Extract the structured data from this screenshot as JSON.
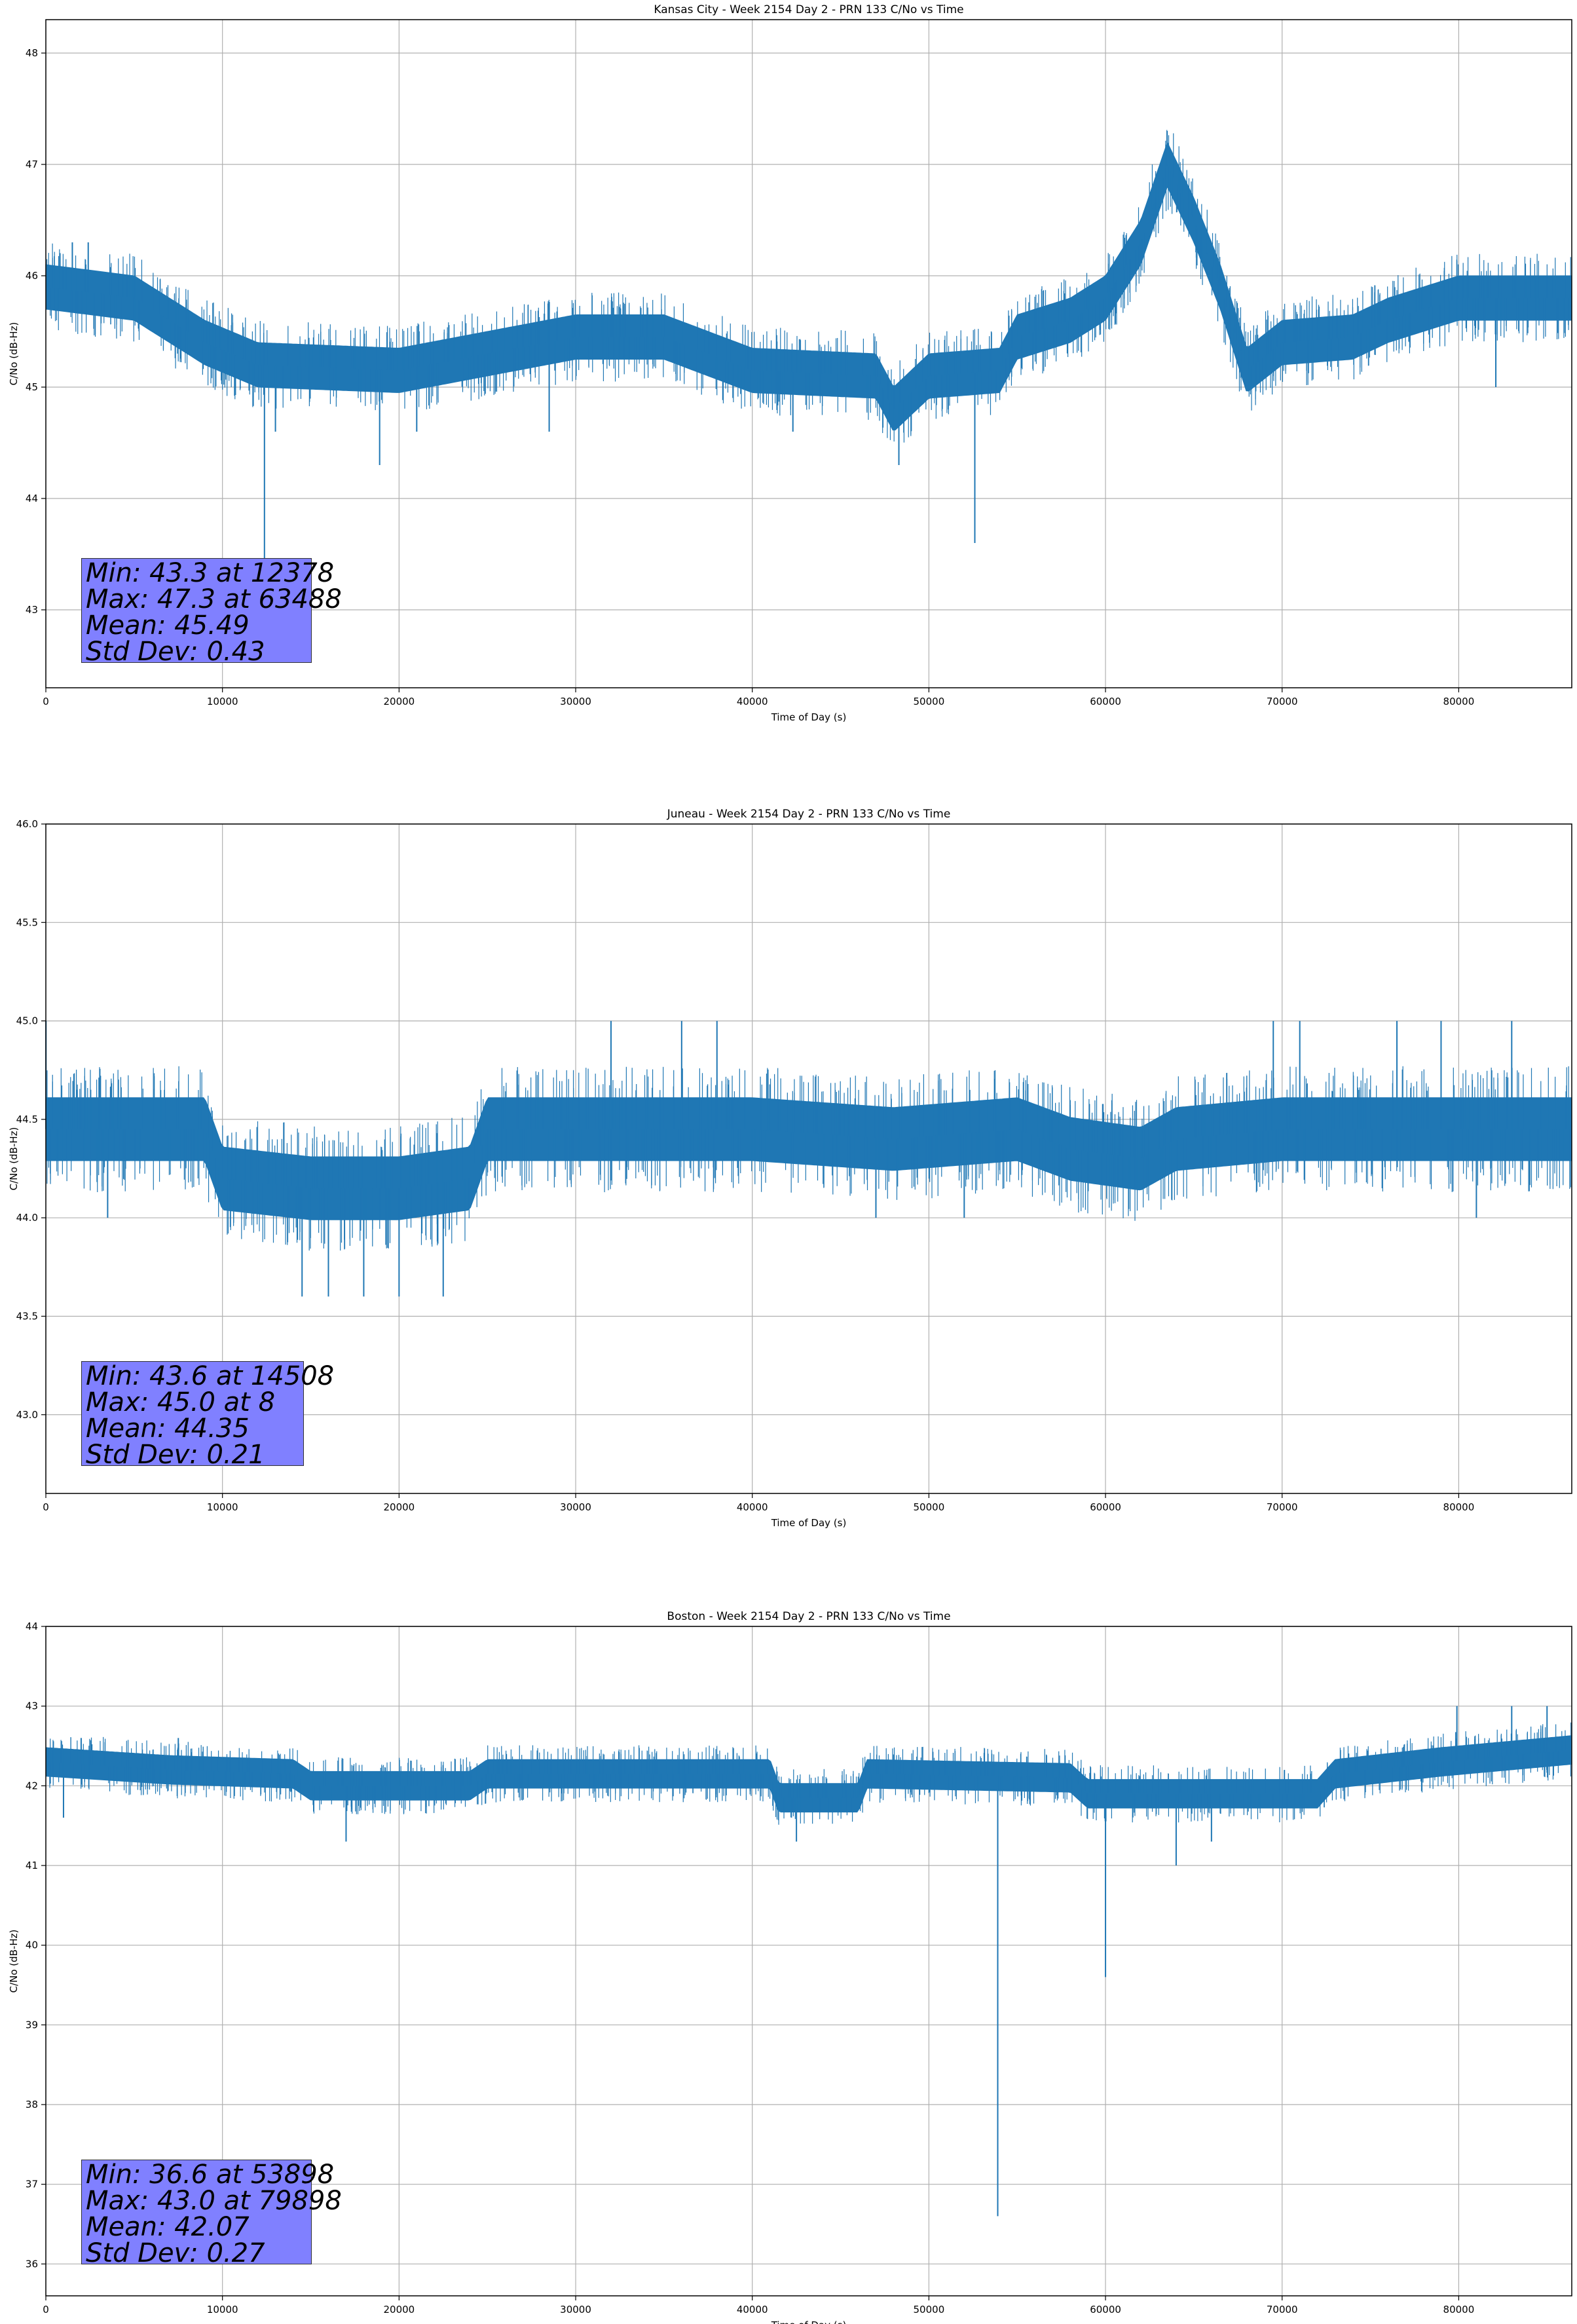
{
  "colors": {
    "series": "#1f77b4",
    "statsBox": "#8080ff",
    "grid": "#b0b0b0",
    "axis": "#000000"
  },
  "chart_data": [
    {
      "type": "line",
      "title": "Kansas City - Week 2154 Day 2 - PRN 133 C/No vs Time",
      "xlabel": "Time of Day (s)",
      "ylabel": "C/No (dB-Hz)",
      "xlim": [
        0,
        86400
      ],
      "ylim": [
        42.3,
        48.3
      ],
      "xticks": [
        0,
        10000,
        20000,
        30000,
        40000,
        50000,
        60000,
        70000,
        80000
      ],
      "yticks": [
        43,
        44,
        45,
        46,
        47,
        48
      ],
      "grid": true,
      "series": [
        {
          "points": [
            [
              0,
              45.9
            ],
            [
              5000,
              45.8
            ],
            [
              9000,
              45.4
            ],
            [
              12000,
              45.2
            ],
            [
              20000,
              45.15
            ],
            [
              25000,
              45.3
            ],
            [
              30000,
              45.45
            ],
            [
              35000,
              45.45
            ],
            [
              40000,
              45.15
            ],
            [
              47000,
              45.1
            ],
            [
              48000,
              44.8
            ],
            [
              50000,
              45.1
            ],
            [
              54000,
              45.15
            ],
            [
              55000,
              45.45
            ],
            [
              58000,
              45.6
            ],
            [
              60000,
              45.8
            ],
            [
              62000,
              46.3
            ],
            [
              63500,
              47.0
            ],
            [
              65000,
              46.5
            ],
            [
              66500,
              45.9
            ],
            [
              68000,
              45.15
            ],
            [
              70000,
              45.4
            ],
            [
              74000,
              45.45
            ],
            [
              76000,
              45.6
            ],
            [
              80000,
              45.8
            ],
            [
              86400,
              45.8
            ]
          ],
          "band_half_width": 0.2,
          "spikes": [
            [
              12378,
              43.3
            ],
            [
              52600,
              43.6
            ],
            [
              48300,
              44.3
            ],
            [
              18900,
              44.3
            ],
            [
              21000,
              44.6
            ],
            [
              28500,
              44.6
            ],
            [
              42300,
              44.6
            ],
            [
              82100,
              45.0
            ],
            [
              1500,
              46.3
            ],
            [
              13000,
              44.6
            ],
            [
              2400,
              46.3
            ],
            [
              63488,
              47.3
            ]
          ]
        }
      ],
      "stats": {
        "min": "Min: 43.3 at 12378",
        "max": "Max: 47.3 at 63488",
        "mean": "Mean: 45.49",
        "std": "Std Dev: 0.43"
      }
    },
    {
      "type": "line",
      "title": "Juneau - Week 2154 Day 2 - PRN 133 C/No vs Time",
      "xlabel": "Time of Day (s)",
      "ylabel": "C/No (dB-Hz)",
      "xlim": [
        0,
        86400
      ],
      "ylim": [
        42.6,
        46.0
      ],
      "xticks": [
        0,
        10000,
        20000,
        30000,
        40000,
        50000,
        60000,
        70000,
        80000
      ],
      "yticks": [
        43.0,
        43.5,
        44.0,
        44.5,
        45.0,
        45.5,
        46.0
      ],
      "grid": true,
      "series": [
        {
          "points": [
            [
              0,
              44.45
            ],
            [
              9000,
              44.45
            ],
            [
              10000,
              44.2
            ],
            [
              15000,
              44.15
            ],
            [
              20000,
              44.15
            ],
            [
              24000,
              44.2
            ],
            [
              25000,
              44.45
            ],
            [
              40000,
              44.45
            ],
            [
              48000,
              44.4
            ],
            [
              55000,
              44.45
            ],
            [
              58000,
              44.35
            ],
            [
              62000,
              44.3
            ],
            [
              64000,
              44.4
            ],
            [
              70000,
              44.45
            ],
            [
              86400,
              44.45
            ]
          ],
          "band_half_width": 0.16,
          "spikes": [
            [
              14508,
              43.6
            ],
            [
              16000,
              43.6
            ],
            [
              18000,
              43.6
            ],
            [
              20000,
              43.6
            ],
            [
              22500,
              43.6
            ],
            [
              8,
              45.0
            ],
            [
              32000,
              45.0
            ],
            [
              36000,
              45.0
            ],
            [
              38000,
              45.0
            ],
            [
              71000,
              45.0
            ],
            [
              79000,
              45.0
            ],
            [
              83000,
              45.0
            ],
            [
              3500,
              44.0
            ],
            [
              47000,
              44.0
            ],
            [
              52000,
              44.0
            ],
            [
              81000,
              44.0
            ],
            [
              69500,
              45.0
            ],
            [
              76500,
              45.0
            ]
          ]
        }
      ],
      "stats": {
        "min": "Min: 43.6 at 14508",
        "max": "Max: 45.0 at 8",
        "mean": "Mean: 44.35",
        "std": "Std Dev: 0.21"
      }
    },
    {
      "type": "line",
      "title": "Boston - Week 2154 Day 2 - PRN 133 C/No vs Time",
      "xlabel": "Time of Day (s)",
      "ylabel": "C/No (dB-Hz)",
      "xlim": [
        0,
        86400
      ],
      "ylim": [
        35.6,
        44.0
      ],
      "xticks": [
        0,
        10000,
        20000,
        30000,
        40000,
        50000,
        60000,
        70000,
        80000
      ],
      "yticks": [
        36,
        37,
        38,
        39,
        40,
        41,
        42,
        43,
        44
      ],
      "grid": true,
      "series": [
        {
          "points": [
            [
              0,
              42.3
            ],
            [
              7000,
              42.2
            ],
            [
              14000,
              42.15
            ],
            [
              15000,
              42.0
            ],
            [
              24000,
              42.0
            ],
            [
              25000,
              42.15
            ],
            [
              41000,
              42.15
            ],
            [
              41500,
              41.85
            ],
            [
              46000,
              41.85
            ],
            [
              46500,
              42.15
            ],
            [
              58000,
              42.1
            ],
            [
              59000,
              41.9
            ],
            [
              72000,
              41.9
            ],
            [
              73000,
              42.15
            ],
            [
              79000,
              42.3
            ],
            [
              86400,
              42.45
            ]
          ],
          "band_half_width": 0.18,
          "spikes": [
            [
              53898,
              36.6
            ],
            [
              60000,
              39.6
            ],
            [
              64000,
              41.0
            ],
            [
              17000,
              41.3
            ],
            [
              42500,
              41.3
            ],
            [
              66000,
              41.3
            ],
            [
              79898,
              43.0
            ],
            [
              83000,
              43.0
            ],
            [
              85000,
              43.0
            ],
            [
              2000,
              42.6
            ],
            [
              7500,
              42.6
            ],
            [
              1000,
              41.6
            ]
          ]
        }
      ],
      "stats": {
        "min": "Min: 36.6 at 53898",
        "max": "Max: 43.0 at 79898",
        "mean": "Mean: 42.07",
        "std": "Std Dev: 0.27"
      }
    }
  ]
}
